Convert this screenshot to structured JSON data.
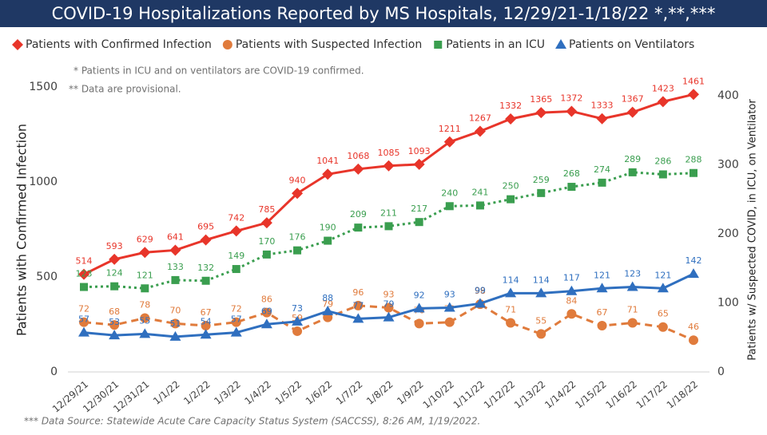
{
  "chart_data": {
    "type": "line",
    "title": "COVID-19 Hospitalizations Reported by MS Hospitals, 12/29/21-1/18/22 *,**,***",
    "y_label": "Patients with Confirmed Infection",
    "y2_label": "Patients w/ Suspected COVID, in ICU, on Ventilator",
    "notes": [
      "* Patients in ICU and on ventilators are COVID-19 confirmed.",
      "** Data are provisional."
    ],
    "source": "*** Data Source: Statewide Acute Care Capacity Status System (SACCSS), 8:26 AM, 1/19/2022.",
    "categories": [
      "12/29/21",
      "12/30/21",
      "12/31/21",
      "1/1/22",
      "1/2/22",
      "1/3/22",
      "1/4/22",
      "1/5/22",
      "1/6/22",
      "1/7/22",
      "1/8/22",
      "1/9/22",
      "1/10/22",
      "1/11/22",
      "1/12/22",
      "1/13/22",
      "1/14/22",
      "1/15/22",
      "1/16/22",
      "1/17/22",
      "1/18/22"
    ],
    "series": [
      {
        "name": "Patients with Confirmed Infection",
        "color": "#e8352a",
        "marker": "diamond",
        "line": "solid",
        "axis": "y",
        "values": [
          514,
          593,
          629,
          641,
          695,
          742,
          785,
          940,
          1041,
          1068,
          1085,
          1093,
          1211,
          1267,
          1332,
          1365,
          1372,
          1333,
          1367,
          1423,
          1461
        ]
      },
      {
        "name": "Patients with Suspected Infection",
        "color": "#e07b3c",
        "marker": "circle",
        "line": "dashed",
        "axis": "y2",
        "values": [
          72,
          68,
          78,
          70,
          67,
          72,
          86,
          59,
          79,
          96,
          93,
          70,
          72,
          98,
          71,
          55,
          84,
          67,
          71,
          65,
          46
        ]
      },
      {
        "name": "Patients in an ICU",
        "color": "#3a9e4f",
        "marker": "square",
        "line": "dotted",
        "axis": "y2",
        "values": [
          123,
          124,
          121,
          133,
          132,
          149,
          170,
          176,
          190,
          209,
          211,
          217,
          240,
          241,
          250,
          259,
          268,
          274,
          289,
          286,
          288
        ]
      },
      {
        "name": "Patients on Ventilators",
        "color": "#2f6fbf",
        "marker": "triangle",
        "line": "solid",
        "axis": "y2",
        "values": [
          57,
          53,
          55,
          51,
          54,
          57,
          69,
          73,
          88,
          77,
          79,
          92,
          93,
          99,
          114,
          114,
          117,
          121,
          123,
          121,
          142
        ]
      }
    ],
    "ylim": [
      0,
      1500
    ],
    "yticks": [
      0,
      500,
      1000,
      1500
    ],
    "y2lim": [
      0,
      412.5
    ],
    "y2ticks": [
      0,
      100,
      200,
      300,
      400
    ]
  }
}
